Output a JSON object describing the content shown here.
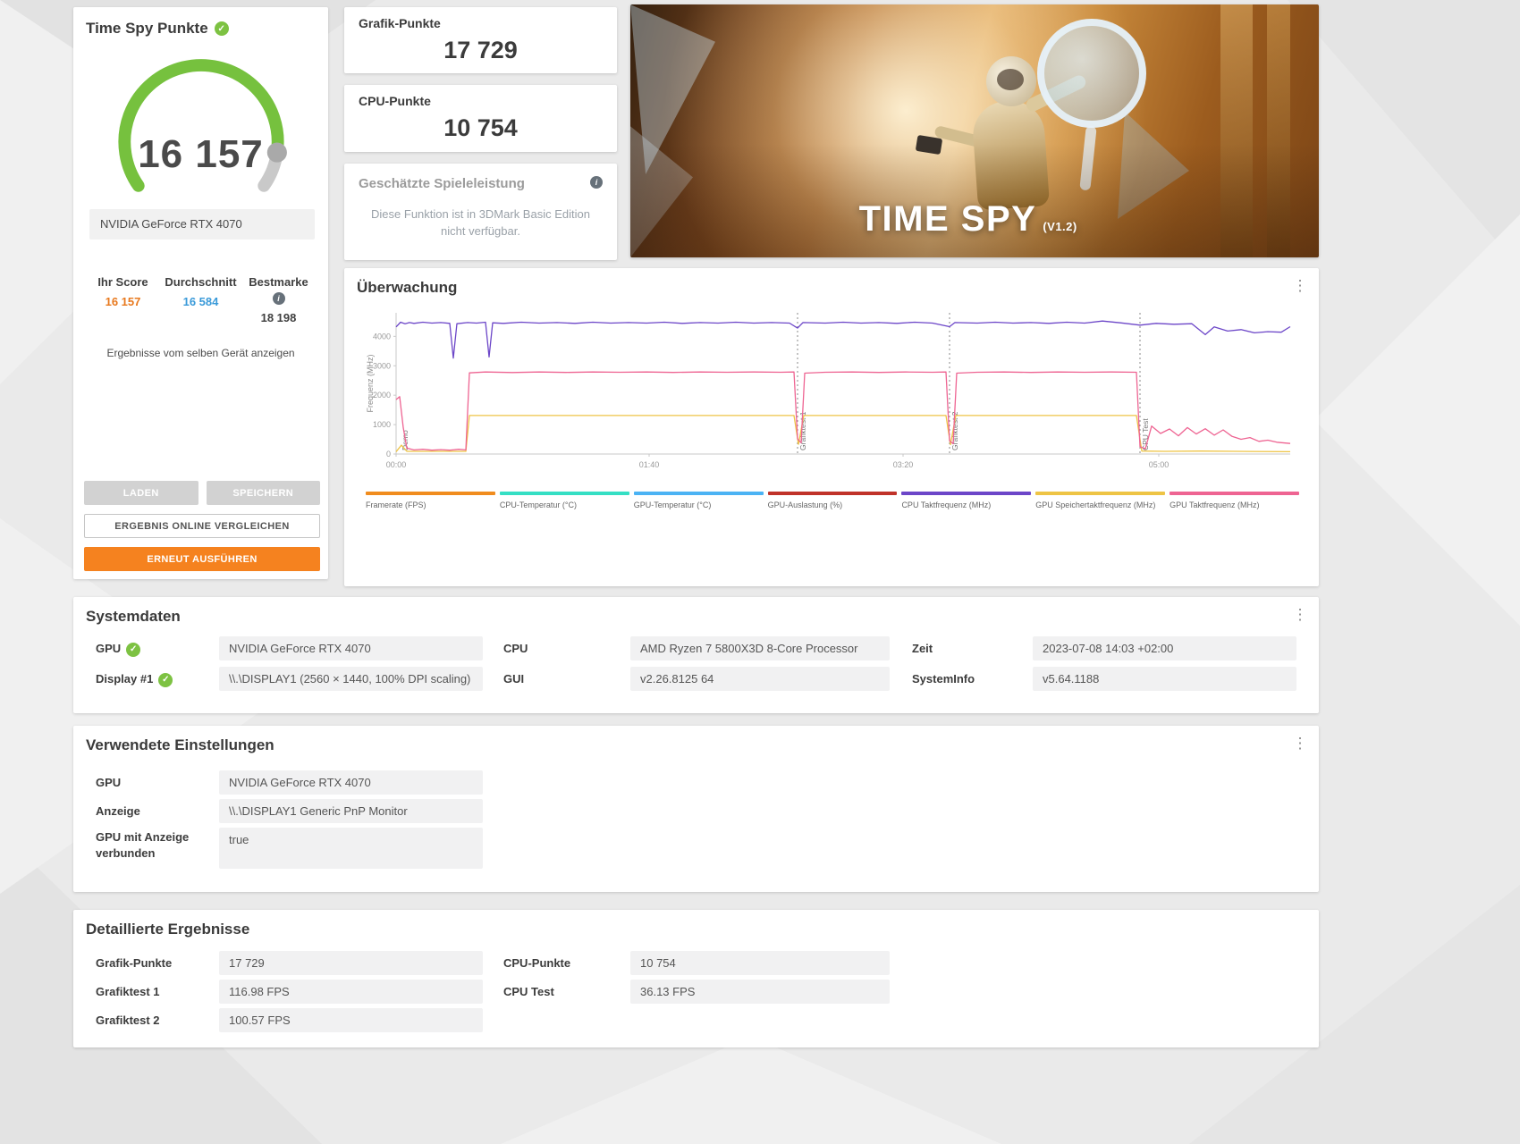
{
  "score_card": {
    "title": "Time Spy Punkte",
    "score": "16 157",
    "device": "NVIDIA GeForce RTX 4070",
    "stats": [
      {
        "label": "Ihr Score",
        "value": "16 157"
      },
      {
        "label": "Durchschnitt",
        "value": "16 584"
      },
      {
        "label": "Bestmarke",
        "value": "18 198"
      }
    ],
    "link_label": "Ergebnisse vom selben Gerät anzeigen",
    "load_label": "LADEN",
    "save_label": "SPEICHERN",
    "compare_label": "ERGEBNIS ONLINE VERGLEICHEN",
    "rerun_label": "ERNEUT AUSFÜHREN"
  },
  "subscores": {
    "graphics_label": "Grafik-Punkte",
    "graphics_value": "17 729",
    "cpu_label": "CPU-Punkte",
    "cpu_value": "10 754"
  },
  "estimated": {
    "title": "Geschätzte Spieleleistung",
    "body": "Diese Funktion ist in 3DMark Basic Edition nicht verfügbar."
  },
  "hero": {
    "title": "TIME SPY",
    "version": "(V1.2)"
  },
  "chart_data": {
    "type": "line",
    "title": "Überwachung",
    "ylabel": "Frequenz (MHz)",
    "ylim": [
      0,
      4800
    ],
    "yticks": [
      0,
      1000,
      2000,
      3000,
      4000
    ],
    "xticks": [
      {
        "pos": 0.0,
        "label": "00:00"
      },
      {
        "pos": 0.283,
        "label": "01:40"
      },
      {
        "pos": 0.567,
        "label": "03:20"
      },
      {
        "pos": 0.853,
        "label": "05:00"
      }
    ],
    "sections": [
      {
        "pos": 0.004,
        "label": "Demo",
        "line": false
      },
      {
        "pos": 0.449,
        "label": "Grafiktest 1",
        "line": true
      },
      {
        "pos": 0.619,
        "label": "Grafiktest 2",
        "line": true
      },
      {
        "pos": 0.832,
        "label": "CPU Test",
        "line": true
      }
    ],
    "series": [
      {
        "name": "GPU Speichertaktfrequenz (MHz)",
        "color": "#eec445",
        "points": [
          [
            0.0,
            80
          ],
          [
            0.006,
            300
          ],
          [
            0.012,
            90
          ],
          [
            0.078,
            90
          ],
          [
            0.082,
            1310
          ],
          [
            0.445,
            1310
          ],
          [
            0.45,
            330
          ],
          [
            0.456,
            1310
          ],
          [
            0.615,
            1310
          ],
          [
            0.62,
            320
          ],
          [
            0.626,
            1310
          ],
          [
            0.828,
            1310
          ],
          [
            0.834,
            100
          ],
          [
            0.86,
            90
          ],
          [
            0.9,
            100
          ],
          [
            0.94,
            90
          ],
          [
            1.0,
            80
          ]
        ]
      },
      {
        "name": "GPU Taktfrequenz (MHz)",
        "color": "#ee6492",
        "points": [
          [
            0.0,
            1850
          ],
          [
            0.004,
            1950
          ],
          [
            0.008,
            900
          ],
          [
            0.012,
            200
          ],
          [
            0.02,
            140
          ],
          [
            0.03,
            160
          ],
          [
            0.04,
            130
          ],
          [
            0.05,
            150
          ],
          [
            0.06,
            130
          ],
          [
            0.07,
            160
          ],
          [
            0.078,
            140
          ],
          [
            0.082,
            2760
          ],
          [
            0.1,
            2790
          ],
          [
            0.13,
            2770
          ],
          [
            0.16,
            2790
          ],
          [
            0.19,
            2775
          ],
          [
            0.22,
            2790
          ],
          [
            0.25,
            2780
          ],
          [
            0.28,
            2790
          ],
          [
            0.31,
            2775
          ],
          [
            0.34,
            2790
          ],
          [
            0.37,
            2780
          ],
          [
            0.4,
            2790
          ],
          [
            0.43,
            2780
          ],
          [
            0.445,
            2790
          ],
          [
            0.449,
            520
          ],
          [
            0.453,
            380
          ],
          [
            0.457,
            2750
          ],
          [
            0.48,
            2780
          ],
          [
            0.51,
            2790
          ],
          [
            0.54,
            2775
          ],
          [
            0.57,
            2790
          ],
          [
            0.6,
            2780
          ],
          [
            0.615,
            2790
          ],
          [
            0.619,
            450
          ],
          [
            0.623,
            350
          ],
          [
            0.627,
            2750
          ],
          [
            0.65,
            2780
          ],
          [
            0.68,
            2790
          ],
          [
            0.71,
            2775
          ],
          [
            0.74,
            2790
          ],
          [
            0.77,
            2780
          ],
          [
            0.8,
            2790
          ],
          [
            0.828,
            2780
          ],
          [
            0.832,
            250
          ],
          [
            0.838,
            180
          ],
          [
            0.845,
            950
          ],
          [
            0.855,
            700
          ],
          [
            0.865,
            850
          ],
          [
            0.875,
            620
          ],
          [
            0.885,
            900
          ],
          [
            0.895,
            680
          ],
          [
            0.905,
            860
          ],
          [
            0.915,
            640
          ],
          [
            0.925,
            820
          ],
          [
            0.935,
            600
          ],
          [
            0.945,
            500
          ],
          [
            0.955,
            560
          ],
          [
            0.965,
            430
          ],
          [
            0.975,
            470
          ],
          [
            0.985,
            400
          ],
          [
            1.0,
            360
          ]
        ]
      },
      {
        "name": "CPU Taktfrequenz (MHz)",
        "color": "#6c46c8",
        "points": [
          [
            0.0,
            4320
          ],
          [
            0.005,
            4480
          ],
          [
            0.01,
            4430
          ],
          [
            0.015,
            4470
          ],
          [
            0.02,
            4440
          ],
          [
            0.03,
            4480
          ],
          [
            0.04,
            4450
          ],
          [
            0.05,
            4470
          ],
          [
            0.06,
            4440
          ],
          [
            0.064,
            3260
          ],
          [
            0.068,
            4430
          ],
          [
            0.08,
            4470
          ],
          [
            0.09,
            4450
          ],
          [
            0.1,
            4480
          ],
          [
            0.104,
            3300
          ],
          [
            0.108,
            4460
          ],
          [
            0.12,
            4440
          ],
          [
            0.14,
            4480
          ],
          [
            0.16,
            4450
          ],
          [
            0.18,
            4470
          ],
          [
            0.2,
            4440
          ],
          [
            0.22,
            4480
          ],
          [
            0.24,
            4450
          ],
          [
            0.26,
            4470
          ],
          [
            0.28,
            4450
          ],
          [
            0.3,
            4480
          ],
          [
            0.32,
            4440
          ],
          [
            0.34,
            4470
          ],
          [
            0.36,
            4450
          ],
          [
            0.38,
            4480
          ],
          [
            0.4,
            4450
          ],
          [
            0.42,
            4470
          ],
          [
            0.44,
            4450
          ],
          [
            0.449,
            4280
          ],
          [
            0.455,
            4470
          ],
          [
            0.48,
            4450
          ],
          [
            0.5,
            4480
          ],
          [
            0.52,
            4450
          ],
          [
            0.54,
            4470
          ],
          [
            0.56,
            4440
          ],
          [
            0.58,
            4480
          ],
          [
            0.6,
            4450
          ],
          [
            0.619,
            4330
          ],
          [
            0.625,
            4470
          ],
          [
            0.65,
            4450
          ],
          [
            0.67,
            4480
          ],
          [
            0.69,
            4450
          ],
          [
            0.71,
            4470
          ],
          [
            0.73,
            4440
          ],
          [
            0.75,
            4480
          ],
          [
            0.77,
            4450
          ],
          [
            0.79,
            4520
          ],
          [
            0.81,
            4460
          ],
          [
            0.832,
            4380
          ],
          [
            0.85,
            4440
          ],
          [
            0.87,
            4410
          ],
          [
            0.89,
            4430
          ],
          [
            0.905,
            4060
          ],
          [
            0.915,
            4320
          ],
          [
            0.93,
            4180
          ],
          [
            0.945,
            4230
          ],
          [
            0.96,
            4120
          ],
          [
            0.975,
            4160
          ],
          [
            0.99,
            4140
          ],
          [
            1.0,
            4330
          ]
        ]
      }
    ],
    "legend": [
      {
        "label": "Framerate (FPS)",
        "color": "#f08c1e"
      },
      {
        "label": "CPU-Temperatur (°C)",
        "color": "#35dfc4"
      },
      {
        "label": "GPU-Temperatur (°C)",
        "color": "#4bb3f4"
      },
      {
        "label": "GPU-Auslastung (%)",
        "color": "#c03229"
      },
      {
        "label": "CPU Taktfrequenz (MHz)",
        "color": "#6c46c8"
      },
      {
        "label": "GPU Speichertaktfrequenz (MHz)",
        "color": "#eec445"
      },
      {
        "label": "GPU Taktfrequenz (MHz)",
        "color": "#ee6492"
      }
    ]
  },
  "systemdata": {
    "title": "Systemdaten",
    "fields": [
      {
        "label": "GPU",
        "value": "NVIDIA GeForce RTX 4070"
      },
      {
        "label": "Display #1",
        "value": "\\\\.\\DISPLAY1 (2560 × 1440, 100% DPI scaling)"
      },
      {
        "label": "CPU",
        "value": "AMD Ryzen 7 5800X3D 8-Core Processor"
      },
      {
        "label": "GUI",
        "value": "v2.26.8125 64"
      },
      {
        "label": "Zeit",
        "value": "2023-07-08 14:03 +02:00"
      },
      {
        "label": "SystemInfo",
        "value": "v5.64.1188"
      }
    ]
  },
  "settings": {
    "title": "Verwendete Einstellungen",
    "fields": [
      {
        "label": "GPU",
        "value": "NVIDIA GeForce RTX 4070"
      },
      {
        "label": "Anzeige",
        "value": "\\\\.\\DISPLAY1 Generic PnP Monitor"
      },
      {
        "label": "GPU mit Anzeige verbunden",
        "value": "true"
      }
    ]
  },
  "details": {
    "title": "Detaillierte Ergebnisse",
    "left": [
      {
        "label": "Grafik-Punkte",
        "value": "17 729"
      },
      {
        "label": "Grafiktest 1",
        "value": "116.98 FPS"
      },
      {
        "label": "Grafiktest 2",
        "value": "100.57 FPS"
      }
    ],
    "right": [
      {
        "label": "CPU-Punkte",
        "value": "10 754"
      },
      {
        "label": "CPU Test",
        "value": "36.13 FPS"
      }
    ]
  },
  "colors": {
    "accent_orange": "#f5821f",
    "score_green": "#76c13e",
    "gauge_rest_gray": "#c9c9c9",
    "avg_blue": "#3a9ad9",
    "check_green": "#7dc242"
  }
}
